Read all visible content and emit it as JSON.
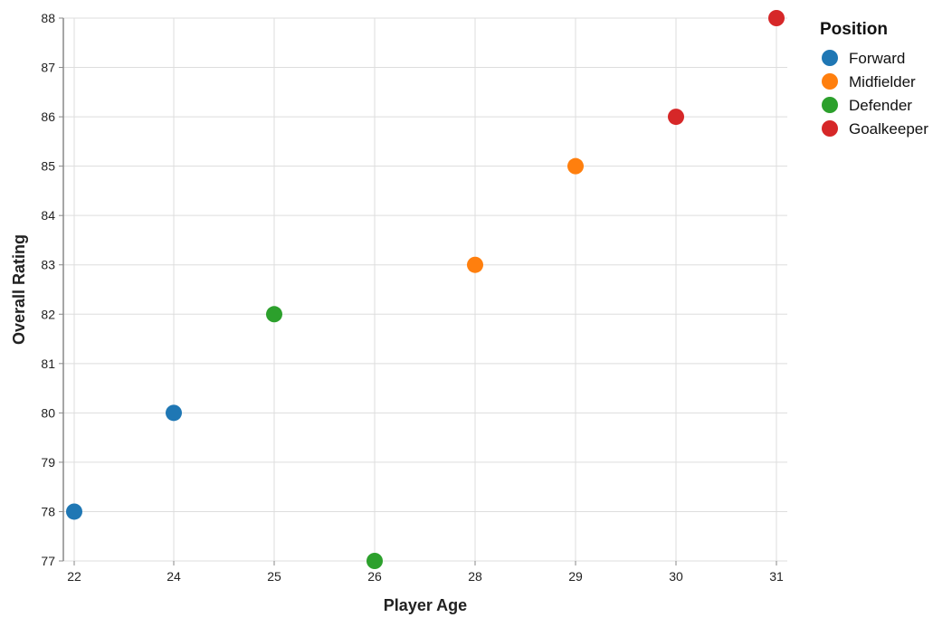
{
  "chart_data": {
    "type": "scatter",
    "xlabel": "Player Age",
    "ylabel": "Overall Rating",
    "x_ticks": [
      22,
      24,
      25,
      26,
      28,
      29,
      30,
      31
    ],
    "ylim": [
      77,
      88
    ],
    "grid": true,
    "legend": {
      "title": "Position",
      "placement": "top-right"
    },
    "series": [
      {
        "name": "Forward",
        "color": "#1f77b4",
        "points": [
          {
            "x": 22,
            "y": 78
          },
          {
            "x": 24,
            "y": 80
          }
        ]
      },
      {
        "name": "Midfielder",
        "color": "#ff7f0e",
        "points": [
          {
            "x": 28,
            "y": 83
          },
          {
            "x": 29,
            "y": 85
          }
        ]
      },
      {
        "name": "Defender",
        "color": "#2ca02c",
        "points": [
          {
            "x": 25,
            "y": 82
          },
          {
            "x": 26,
            "y": 77
          }
        ]
      },
      {
        "name": "Goalkeeper",
        "color": "#d62728",
        "points": [
          {
            "x": 30,
            "y": 86
          },
          {
            "x": 31,
            "y": 88
          }
        ]
      }
    ]
  }
}
